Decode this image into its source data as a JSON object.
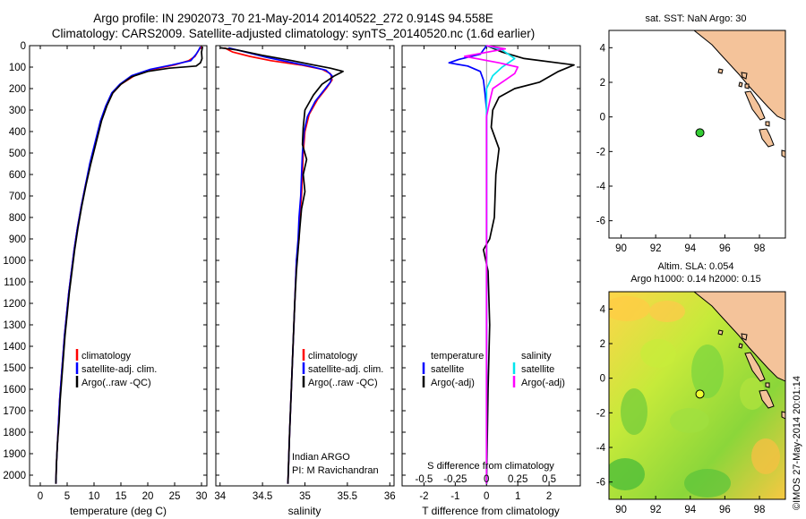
{
  "header": {
    "line1": "Argo profile: IN 2902073_70 21-May-2014 20140522_272 0.914S 94.558E",
    "line2": "Climatology: CARS2009. Satellite-adjusted climatology: synTS_20140520.nc (1.6d earlier)"
  },
  "colors": {
    "clim": "#ff0000",
    "sat": "#0000ff",
    "argo": "#000000",
    "satS": "#00e5ee",
    "argoS": "#ff00ff",
    "land": "#f4c39a",
    "float_sst": "#33cc33",
    "float_sla": "#eeff33"
  },
  "depth_ticks": [
    0,
    100,
    200,
    300,
    400,
    500,
    600,
    700,
    800,
    900,
    1000,
    1100,
    1200,
    1300,
    1400,
    1500,
    1600,
    1700,
    1800,
    1900,
    2000
  ],
  "chart_data": [
    {
      "type": "line",
      "name": "temperature",
      "xlabel": "temperature (deg C)",
      "xlim": [
        -2,
        31
      ],
      "ylim": [
        2050,
        0
      ],
      "xticks": [
        "0",
        "5",
        "10",
        "15",
        "20",
        "25",
        "30"
      ],
      "xtick_values": [
        0,
        5,
        10,
        15,
        20,
        25,
        30
      ],
      "legend": [
        "climatology",
        "satellite-adj. clim.",
        "Argo(..raw -QC)"
      ],
      "series": [
        {
          "name": "climatology",
          "color": "red",
          "points": [
            [
              30,
              5
            ],
            [
              29.5,
              20
            ],
            [
              28.8,
              50
            ],
            [
              27.6,
              70
            ],
            [
              25,
              90
            ],
            [
              21,
              110
            ],
            [
              17.5,
              140
            ],
            [
              15,
              180
            ],
            [
              13.5,
              220
            ],
            [
              12.3,
              280
            ],
            [
              11.3,
              350
            ],
            [
              10.3,
              450
            ],
            [
              9.3,
              550
            ],
            [
              8.4,
              650
            ],
            [
              7.6,
              750
            ],
            [
              6.9,
              850
            ],
            [
              6.3,
              950
            ],
            [
              5.8,
              1050
            ],
            [
              5.3,
              1150
            ],
            [
              4.9,
              1250
            ],
            [
              4.5,
              1350
            ],
            [
              4.2,
              1450
            ],
            [
              3.9,
              1550
            ],
            [
              3.6,
              1650
            ],
            [
              3.4,
              1750
            ],
            [
              3.2,
              1850
            ],
            [
              3.0,
              1950
            ],
            [
              2.9,
              2040
            ]
          ]
        },
        {
          "name": "satellite-adj. clim.",
          "color": "blue",
          "points": [
            [
              29.8,
              5
            ],
            [
              29.5,
              20
            ],
            [
              29,
              40
            ],
            [
              28,
              70
            ],
            [
              24.5,
              90
            ],
            [
              20.5,
              110
            ],
            [
              17,
              140
            ],
            [
              14.8,
              180
            ],
            [
              13.3,
              220
            ],
            [
              12.2,
              280
            ],
            [
              11.2,
              350
            ],
            [
              10.2,
              450
            ],
            [
              9.2,
              550
            ],
            [
              8.4,
              650
            ],
            [
              7.6,
              750
            ],
            [
              6.9,
              850
            ],
            [
              6.3,
              950
            ],
            [
              5.8,
              1050
            ],
            [
              5.3,
              1150
            ],
            [
              4.9,
              1250
            ],
            [
              4.5,
              1350
            ],
            [
              4.2,
              1450
            ],
            [
              3.9,
              1550
            ],
            [
              3.6,
              1650
            ],
            [
              3.4,
              1750
            ],
            [
              3.2,
              1850
            ],
            [
              3.0,
              1950
            ],
            [
              2.9,
              2040
            ]
          ]
        },
        {
          "name": "Argo(..raw -QC)",
          "color": "black",
          "points": [
            [
              30.2,
              5
            ],
            [
              30,
              30
            ],
            [
              30.1,
              60
            ],
            [
              29.8,
              80
            ],
            [
              29,
              95
            ],
            [
              24,
              105
            ],
            [
              20,
              120
            ],
            [
              17,
              145
            ],
            [
              15,
              180
            ],
            [
              13.5,
              220
            ],
            [
              12.4,
              280
            ],
            [
              11.4,
              350
            ],
            [
              10.4,
              450
            ],
            [
              9.4,
              550
            ],
            [
              8.5,
              650
            ],
            [
              7.7,
              750
            ],
            [
              7.0,
              850
            ],
            [
              6.4,
              950
            ],
            [
              5.9,
              1050
            ],
            [
              5.4,
              1150
            ],
            [
              5.0,
              1250
            ],
            [
              4.6,
              1350
            ],
            [
              4.3,
              1450
            ],
            [
              4.0,
              1550
            ],
            [
              3.7,
              1650
            ],
            [
              3.5,
              1750
            ],
            [
              3.2,
              1850
            ],
            [
              3.0,
              1950
            ],
            [
              2.9,
              2040
            ]
          ]
        }
      ]
    },
    {
      "type": "line",
      "name": "salinity",
      "xlabel": "salinity",
      "xlim": [
        33.95,
        36.05
      ],
      "ylim": [
        2050,
        0
      ],
      "xticks": [
        "34",
        "34.5",
        "35",
        "35.5",
        "36"
      ],
      "xtick_values": [
        34,
        34.5,
        35,
        35.5,
        36
      ],
      "legend": [
        "climatology",
        "satellite-adj. clim.",
        "Argo(..raw -QC)"
      ],
      "annotation": [
        "Indian ARGO",
        "PI: M Ravichandran"
      ],
      "series": [
        {
          "name": "climatology",
          "color": "red",
          "points": [
            [
              34.05,
              10
            ],
            [
              34.15,
              30
            ],
            [
              34.35,
              50
            ],
            [
              34.6,
              70
            ],
            [
              34.95,
              90
            ],
            [
              35.2,
              110
            ],
            [
              35.3,
              130
            ],
            [
              35.32,
              160
            ],
            [
              35.25,
              200
            ],
            [
              35.15,
              250
            ],
            [
              35.05,
              320
            ],
            [
              35.0,
              400
            ],
            [
              34.98,
              500
            ],
            [
              34.97,
              600
            ],
            [
              34.96,
              700
            ],
            [
              34.94,
              800
            ],
            [
              34.93,
              900
            ],
            [
              34.9,
              1000
            ],
            [
              34.88,
              1200
            ],
            [
              34.86,
              1400
            ],
            [
              34.84,
              1600
            ],
            [
              34.82,
              1800
            ],
            [
              34.8,
              2040
            ]
          ]
        },
        {
          "name": "satellite-adj. clim.",
          "color": "blue",
          "points": [
            [
              34.1,
              10
            ],
            [
              34.3,
              30
            ],
            [
              34.55,
              55
            ],
            [
              34.8,
              75
            ],
            [
              35.05,
              95
            ],
            [
              35.25,
              115
            ],
            [
              35.32,
              140
            ],
            [
              35.3,
              170
            ],
            [
              35.22,
              210
            ],
            [
              35.12,
              260
            ],
            [
              35.03,
              330
            ],
            [
              34.99,
              400
            ],
            [
              34.97,
              500
            ],
            [
              34.96,
              600
            ],
            [
              34.95,
              700
            ],
            [
              34.93,
              800
            ],
            [
              34.92,
              900
            ],
            [
              34.9,
              1000
            ],
            [
              34.88,
              1200
            ],
            [
              34.86,
              1400
            ],
            [
              34.84,
              1600
            ],
            [
              34.82,
              1800
            ],
            [
              34.8,
              2040
            ]
          ]
        },
        {
          "name": "Argo(..raw -QC)",
          "color": "black",
          "points": [
            [
              34.0,
              10
            ],
            [
              34.2,
              20
            ],
            [
              34.5,
              45
            ],
            [
              34.85,
              70
            ],
            [
              35.1,
              90
            ],
            [
              35.3,
              105
            ],
            [
              35.45,
              120
            ],
            [
              35.35,
              140
            ],
            [
              35.2,
              180
            ],
            [
              35.1,
              230
            ],
            [
              35.0,
              300
            ],
            [
              34.98,
              380
            ],
            [
              34.97,
              460
            ],
            [
              35.02,
              530
            ],
            [
              34.98,
              600
            ],
            [
              35.0,
              680
            ],
            [
              34.96,
              760
            ],
            [
              34.94,
              850
            ],
            [
              34.92,
              950
            ],
            [
              34.9,
              1050
            ],
            [
              34.88,
              1200
            ],
            [
              34.86,
              1400
            ],
            [
              34.84,
              1600
            ],
            [
              34.82,
              1800
            ],
            [
              34.8,
              2040
            ]
          ]
        }
      ]
    },
    {
      "type": "line",
      "name": "difference from climatology",
      "xlabel": "T difference from climatology",
      "xlabel2": "S difference from climatology",
      "xlim": [
        -2.7,
        3.0
      ],
      "ylim": [
        2050,
        0
      ],
      "xticks": [
        "-2",
        "-1",
        "0",
        "1",
        "2"
      ],
      "xtick_values": [
        -2,
        -1,
        0,
        1,
        2
      ],
      "s_ticks": [
        "-0.5",
        "-0.25",
        "0",
        "0.25",
        "0.5"
      ],
      "s_tick_positions": [
        -2,
        -1,
        0,
        1,
        2
      ],
      "legend_left_title": "temperature",
      "legend_right_title": "salinity",
      "legend": [
        "satellite",
        "Argo(-adj)",
        "satellite",
        "Argo(-adj)"
      ],
      "series": [
        {
          "name": "T satellite",
          "color": "blue",
          "points": [
            [
              0,
              0
            ],
            [
              -0.2,
              40
            ],
            [
              -0.9,
              65
            ],
            [
              -1.2,
              80
            ],
            [
              -0.6,
              95
            ],
            [
              -0.2,
              120
            ],
            [
              -0.1,
              160
            ],
            [
              -0.05,
              220
            ],
            [
              0,
              300
            ],
            [
              0,
              2040
            ]
          ]
        },
        {
          "name": "T Argo(-adj)",
          "color": "black",
          "points": [
            [
              0,
              0
            ],
            [
              0.5,
              30
            ],
            [
              1.2,
              60
            ],
            [
              2.8,
              90
            ],
            [
              2.3,
              120
            ],
            [
              1.7,
              170
            ],
            [
              0.9,
              200
            ],
            [
              0.4,
              240
            ],
            [
              0.2,
              300
            ],
            [
              0.15,
              380
            ],
            [
              0.4,
              480
            ],
            [
              0.3,
              600
            ],
            [
              0.25,
              800
            ],
            [
              0.1,
              900
            ],
            [
              -0.1,
              950
            ],
            [
              0.05,
              1050
            ],
            [
              0.1,
              1300
            ],
            [
              0.05,
              1600
            ],
            [
              0,
              2040
            ]
          ]
        },
        {
          "name": "S satellite",
          "color": "cyan",
          "points": [
            [
              0,
              0
            ],
            [
              0.5,
              20
            ],
            [
              0.9,
              60
            ],
            [
              0.5,
              100
            ],
            [
              0.2,
              140
            ],
            [
              0,
              200
            ],
            [
              0,
              2040
            ]
          ]
        },
        {
          "name": "S Argo(-adj)",
          "color": "magenta",
          "points": [
            [
              0,
              0
            ],
            [
              0.6,
              15
            ],
            [
              -0.7,
              50
            ],
            [
              0.4,
              80
            ],
            [
              1.0,
              100
            ],
            [
              0.9,
              130
            ],
            [
              0.6,
              160
            ],
            [
              0.2,
              200
            ],
            [
              0.1,
              260
            ],
            [
              0,
              330
            ],
            [
              0,
              2040
            ]
          ]
        }
      ]
    },
    {
      "type": "map",
      "name": "sst",
      "title": "sat. SST: NaN Argo: 30",
      "xlim": [
        89.3,
        99.5
      ],
      "ylim": [
        -7,
        5
      ],
      "xticks": [
        "90",
        "92",
        "94",
        "96",
        "98"
      ],
      "xtick_values": [
        90,
        92,
        94,
        96,
        98
      ],
      "yticks": [
        "4",
        "2",
        "0",
        "-2",
        "-4",
        "-6"
      ],
      "ytick_values": [
        4,
        2,
        0,
        -2,
        -4,
        -6
      ],
      "float": {
        "lon": 94.558,
        "lat": -0.914
      }
    },
    {
      "type": "map",
      "name": "sla",
      "title1": "Altim. SLA: 0.054",
      "title2": "Argo h1000: 0.14 h2000: 0.15",
      "xlim": [
        89.3,
        99.5
      ],
      "ylim": [
        -7,
        5
      ],
      "xticks": [
        "90",
        "92",
        "94",
        "96",
        "98"
      ],
      "xtick_values": [
        90,
        92,
        94,
        96,
        98
      ],
      "yticks": [
        "4",
        "2",
        "0",
        "-2",
        "-4",
        "-6"
      ],
      "ytick_values": [
        4,
        2,
        0,
        -2,
        -4,
        -6
      ],
      "float": {
        "lon": 94.558,
        "lat": -0.914
      }
    }
  ],
  "footer": "©IMOS 27-May-2014 20:01:14"
}
